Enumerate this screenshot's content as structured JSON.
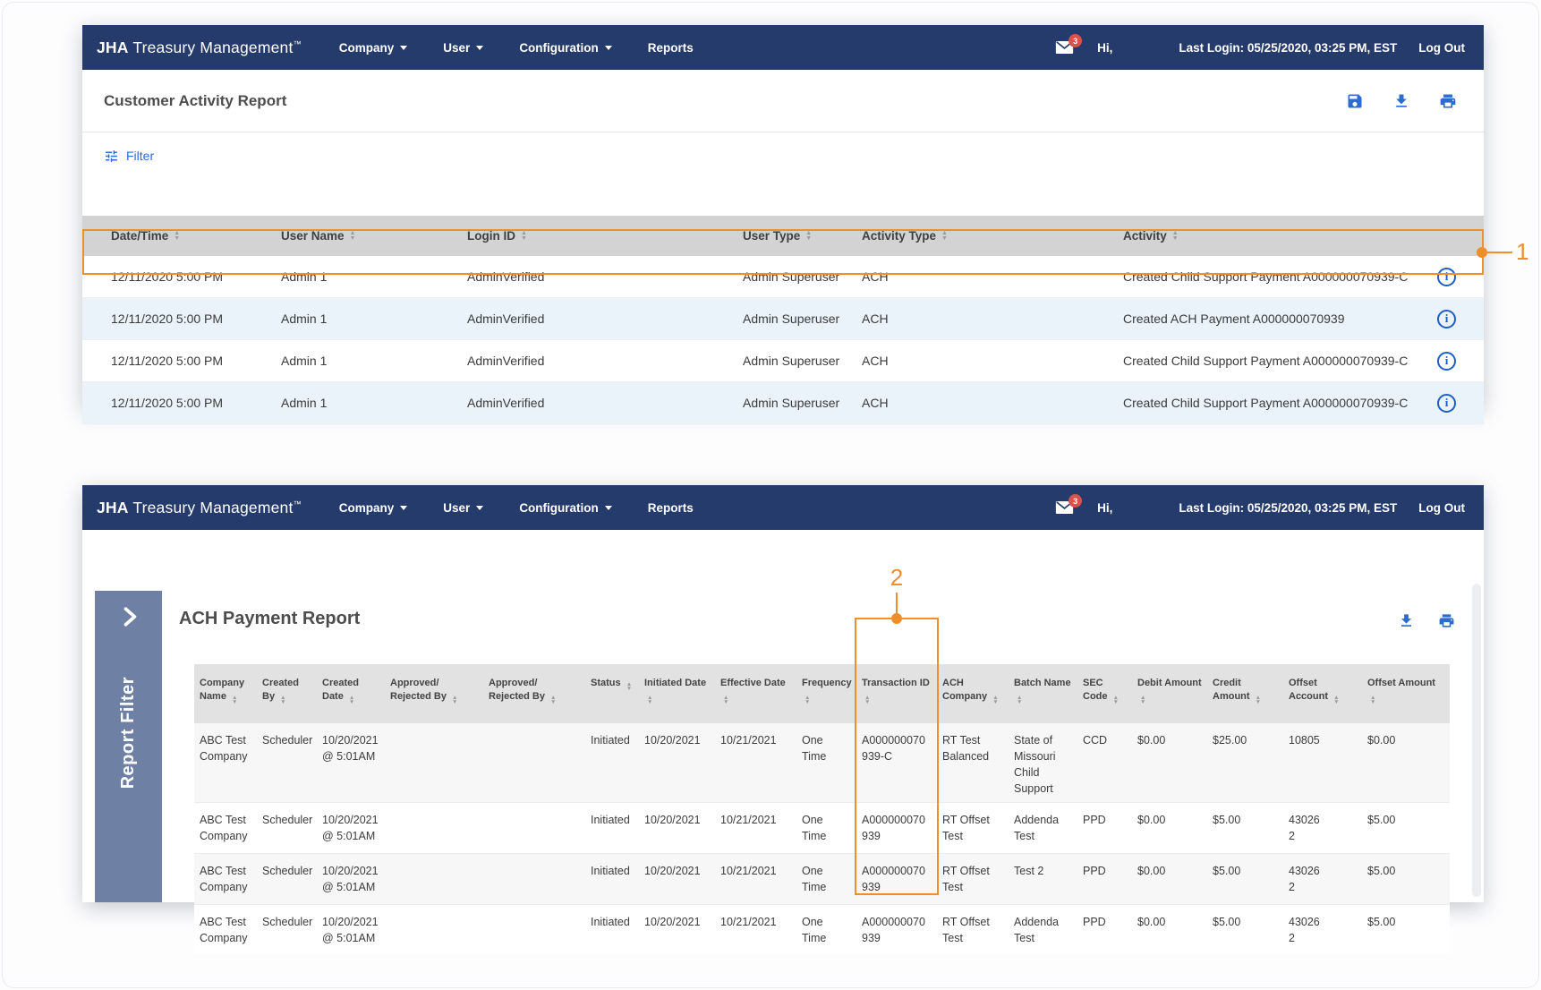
{
  "nav": {
    "brand_bold": "JHA",
    "brand_rest": " Treasury Management",
    "brand_tm": "™",
    "menu_company": "Company",
    "menu_user": "User",
    "menu_configuration": "Configuration",
    "menu_reports": "Reports",
    "mail_badge": "3",
    "greeting": "Hi,",
    "last_login": "Last Login: 05/25/2020, 03:25 PM, EST",
    "log_out": "Log Out"
  },
  "customer_activity_report": {
    "title": "Customer Activity Report",
    "filter_label": "Filter",
    "toolbar_icons": [
      "save",
      "download",
      "print"
    ],
    "columns": [
      "Date/Time",
      "User Name",
      "Login ID",
      "User Type",
      "Activity Type",
      "Activity"
    ],
    "rows": [
      {
        "highlighted": true,
        "cells": [
          "12/11/2020 5:00 PM",
          "Admin 1",
          "AdminVerified",
          "Admin Superuser",
          "ACH",
          "Created Child Support Payment A000000070939-C"
        ]
      },
      {
        "highlighted": false,
        "cells": [
          "12/11/2020 5:00 PM",
          "Admin 1",
          "AdminVerified",
          "Admin Superuser",
          "ACH",
          "Created ACH Payment A000000070939"
        ]
      },
      {
        "highlighted": false,
        "cells": [
          "12/11/2020 5:00 PM",
          "Admin 1",
          "AdminVerified",
          "Admin Superuser",
          "ACH",
          "Created Child Support Payment A000000070939-C"
        ]
      },
      {
        "highlighted": false,
        "cells": [
          "12/11/2020 5:00 PM",
          "Admin 1",
          "AdminVerified",
          "Admin Superuser",
          "ACH",
          "Created Child Support Payment A000000070939-C"
        ]
      }
    ],
    "callout_number": "1"
  },
  "ach_payment_report": {
    "title": "ACH Payment Report",
    "sidebar_label": "Report Filter",
    "toolbar_icons": [
      "download",
      "print"
    ],
    "highlighted_column": "Transaction ID",
    "columns": [
      "Company Name",
      "Created By",
      "Created Date",
      "Approved/ Rejected By",
      "Approved/ Rejected By",
      "Status",
      "Initiated Date",
      "Effective Date",
      "Frequency",
      "Transaction ID",
      "ACH Company",
      "Batch Name",
      "SEC Code",
      "Debit Amount",
      "Credit Amount",
      "Offset Account",
      "Offset Amount"
    ],
    "rows": [
      [
        "ABC Test\nCompany",
        "Scheduler",
        "10/20/2021\n@ 5:01AM",
        "",
        "",
        "Initiated",
        "10/20/2021",
        "10/21/2021",
        "One\nTime",
        "A000000070\n939-C",
        "RT Test\nBalanced",
        "State of\nMissouri\nChild\nSupport",
        "CCD",
        "$0.00",
        "$25.00",
        "10805",
        "$0.00"
      ],
      [
        "ABC Test\nCompany",
        "Scheduler",
        "10/20/2021\n@ 5:01AM",
        "",
        "",
        "Initiated",
        "10/20/2021",
        "10/21/2021",
        "One\nTime",
        "A000000070\n939",
        "RT Offset\nTest",
        "Addenda\nTest",
        "PPD",
        "$0.00",
        "$5.00",
        "43026\n2",
        "$5.00"
      ],
      [
        "ABC Test\nCompany",
        "Scheduler",
        "10/20/2021\n@ 5:01AM",
        "",
        "",
        "Initiated",
        "10/20/2021",
        "10/21/2021",
        "One\nTime",
        "A000000070\n939",
        "RT Offset\nTest",
        "Test 2",
        "PPD",
        "$0.00",
        "$5.00",
        "43026\n2",
        "$5.00"
      ],
      [
        "ABC Test\nCompany",
        "Scheduler",
        "10/20/2021\n@ 5:01AM",
        "",
        "",
        "Initiated",
        "10/20/2021",
        "10/21/2021",
        "One\nTime",
        "A000000070\n939",
        "RT Offset\nTest",
        "Addenda\nTest",
        "PPD",
        "$0.00",
        "$5.00",
        "43026\n2",
        "$5.00"
      ]
    ],
    "callout_number": "2"
  },
  "colors": {
    "navbar_navy": "#253b6b",
    "accent_orange": "#ef8f2b",
    "link_blue": "#2b6cce",
    "badge_red": "#d9534b",
    "sidebar_slate": "#6e81a4"
  }
}
